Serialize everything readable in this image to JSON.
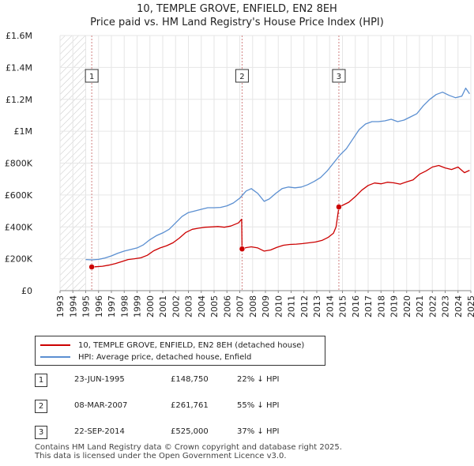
{
  "colors": {
    "property": "#cc0000",
    "hpi": "#5b8fd1",
    "grid": "#e6e6e6",
    "hatch": "#c8c8c8"
  },
  "chart_data": {
    "type": "line",
    "title": "10, TEMPLE GROVE, ENFIELD, EN2 8EH",
    "subtitle": "Price paid vs. HM Land Registry's House Price Index (HPI)",
    "xlabel": "",
    "ylabel": "",
    "xlim": [
      1993,
      2025
    ],
    "ylim": [
      0,
      1600000
    ],
    "x_ticks": [
      1993,
      1994,
      1995,
      1996,
      1997,
      1998,
      1999,
      2000,
      2001,
      2002,
      2003,
      2004,
      2005,
      2006,
      2007,
      2008,
      2009,
      2010,
      2011,
      2012,
      2013,
      2014,
      2015,
      2016,
      2017,
      2018,
      2019,
      2020,
      2021,
      2022,
      2023,
      2024,
      2025
    ],
    "y_ticks": [
      {
        "value": 0,
        "label": "£0"
      },
      {
        "value": 200000,
        "label": "£200K"
      },
      {
        "value": 400000,
        "label": "£400K"
      },
      {
        "value": 600000,
        "label": "£600K"
      },
      {
        "value": 800000,
        "label": "£800K"
      },
      {
        "value": 1000000,
        "label": "£1M"
      },
      {
        "value": 1200000,
        "label": "£1.2M"
      },
      {
        "value": 1400000,
        "label": "£1.4M"
      },
      {
        "value": 1600000,
        "label": "£1.6M"
      }
    ],
    "grid": true,
    "hatched_region_until": 1995.0,
    "series": [
      {
        "name": "10, TEMPLE GROVE, ENFIELD, EN2 8EH (detached house)",
        "color": "#cc0000",
        "points": [
          [
            1995.47,
            148750
          ],
          [
            1995.8,
            150000
          ],
          [
            1996.3,
            153000
          ],
          [
            1996.8,
            160000
          ],
          [
            1997.3,
            170000
          ],
          [
            1997.8,
            182000
          ],
          [
            1998.3,
            195000
          ],
          [
            1998.8,
            200000
          ],
          [
            1999.3,
            206000
          ],
          [
            1999.8,
            222000
          ],
          [
            2000.3,
            250000
          ],
          [
            2000.8,
            268000
          ],
          [
            2001.3,
            282000
          ],
          [
            2001.8,
            300000
          ],
          [
            2002.3,
            330000
          ],
          [
            2002.8,
            365000
          ],
          [
            2003.3,
            385000
          ],
          [
            2003.8,
            392000
          ],
          [
            2004.3,
            398000
          ],
          [
            2004.8,
            400000
          ],
          [
            2005.3,
            402000
          ],
          [
            2005.8,
            398000
          ],
          [
            2006.3,
            405000
          ],
          [
            2006.9,
            425000
          ],
          [
            2007.15,
            448000
          ],
          [
            2007.18,
            261761
          ],
          [
            2007.5,
            270000
          ],
          [
            2007.9,
            275000
          ],
          [
            2008.4,
            268000
          ],
          [
            2008.9,
            248000
          ],
          [
            2009.4,
            255000
          ],
          [
            2009.9,
            272000
          ],
          [
            2010.4,
            285000
          ],
          [
            2010.9,
            290000
          ],
          [
            2011.4,
            292000
          ],
          [
            2011.9,
            295000
          ],
          [
            2012.4,
            300000
          ],
          [
            2012.9,
            305000
          ],
          [
            2013.4,
            315000
          ],
          [
            2013.9,
            335000
          ],
          [
            2014.3,
            360000
          ],
          [
            2014.5,
            400000
          ],
          [
            2014.72,
            525000
          ],
          [
            2015.0,
            535000
          ],
          [
            2015.5,
            555000
          ],
          [
            2016.0,
            590000
          ],
          [
            2016.5,
            630000
          ],
          [
            2017.0,
            660000
          ],
          [
            2017.5,
            675000
          ],
          [
            2018.0,
            670000
          ],
          [
            2018.5,
            680000
          ],
          [
            2019.0,
            676000
          ],
          [
            2019.5,
            668000
          ],
          [
            2020.0,
            682000
          ],
          [
            2020.5,
            695000
          ],
          [
            2021.0,
            730000
          ],
          [
            2021.5,
            750000
          ],
          [
            2022.0,
            775000
          ],
          [
            2022.5,
            785000
          ],
          [
            2023.0,
            770000
          ],
          [
            2023.5,
            760000
          ],
          [
            2024.0,
            775000
          ],
          [
            2024.5,
            740000
          ],
          [
            2024.9,
            755000
          ]
        ]
      },
      {
        "name": "HPI: Average price, detached house, Enfield",
        "color": "#5b8fd1",
        "points": [
          [
            1995.0,
            195000
          ],
          [
            1995.5,
            193000
          ],
          [
            1996.0,
            196000
          ],
          [
            1996.5,
            205000
          ],
          [
            1997.0,
            218000
          ],
          [
            1997.5,
            235000
          ],
          [
            1998.0,
            248000
          ],
          [
            1998.5,
            258000
          ],
          [
            1999.0,
            268000
          ],
          [
            1999.5,
            288000
          ],
          [
            2000.0,
            320000
          ],
          [
            2000.5,
            345000
          ],
          [
            2001.0,
            362000
          ],
          [
            2001.5,
            385000
          ],
          [
            2002.0,
            425000
          ],
          [
            2002.5,
            465000
          ],
          [
            2003.0,
            490000
          ],
          [
            2003.5,
            500000
          ],
          [
            2004.0,
            510000
          ],
          [
            2004.5,
            520000
          ],
          [
            2005.0,
            520000
          ],
          [
            2005.5,
            522000
          ],
          [
            2006.0,
            532000
          ],
          [
            2006.5,
            550000
          ],
          [
            2007.0,
            580000
          ],
          [
            2007.5,
            625000
          ],
          [
            2007.9,
            640000
          ],
          [
            2008.4,
            610000
          ],
          [
            2008.9,
            560000
          ],
          [
            2009.3,
            575000
          ],
          [
            2009.8,
            610000
          ],
          [
            2010.3,
            640000
          ],
          [
            2010.8,
            650000
          ],
          [
            2011.3,
            645000
          ],
          [
            2011.8,
            650000
          ],
          [
            2012.3,
            665000
          ],
          [
            2012.8,
            685000
          ],
          [
            2013.3,
            710000
          ],
          [
            2013.8,
            750000
          ],
          [
            2014.3,
            800000
          ],
          [
            2014.8,
            850000
          ],
          [
            2015.3,
            890000
          ],
          [
            2015.8,
            950000
          ],
          [
            2016.3,
            1010000
          ],
          [
            2016.8,
            1045000
          ],
          [
            2017.3,
            1060000
          ],
          [
            2017.8,
            1060000
          ],
          [
            2018.3,
            1065000
          ],
          [
            2018.8,
            1075000
          ],
          [
            2019.3,
            1060000
          ],
          [
            2019.8,
            1070000
          ],
          [
            2020.3,
            1090000
          ],
          [
            2020.8,
            1110000
          ],
          [
            2021.3,
            1160000
          ],
          [
            2021.8,
            1200000
          ],
          [
            2022.3,
            1230000
          ],
          [
            2022.8,
            1245000
          ],
          [
            2023.3,
            1225000
          ],
          [
            2023.8,
            1210000
          ],
          [
            2024.3,
            1220000
          ],
          [
            2024.6,
            1270000
          ],
          [
            2024.9,
            1235000
          ]
        ]
      }
    ],
    "sale_markers": [
      {
        "label": "1",
        "x": 1995.47,
        "y": 148750
      },
      {
        "label": "2",
        "x": 2007.18,
        "y": 261761
      },
      {
        "label": "3",
        "x": 2014.72,
        "y": 525000
      }
    ]
  },
  "legend": {
    "property_label": "10, TEMPLE GROVE, ENFIELD, EN2 8EH (detached house)",
    "hpi_label": "HPI: Average price, detached house, Enfield"
  },
  "sales": [
    {
      "num": "1",
      "date": "23-JUN-1995",
      "price": "£148,750",
      "pct": "22% ↓ HPI"
    },
    {
      "num": "2",
      "date": "08-MAR-2007",
      "price": "£261,761",
      "pct": "55% ↓ HPI"
    },
    {
      "num": "3",
      "date": "22-SEP-2014",
      "price": "£525,000",
      "pct": "37% ↓ HPI"
    }
  ],
  "footer": {
    "line1": "Contains HM Land Registry data © Crown copyright and database right 2025.",
    "line2": "This data is licensed under the Open Government Licence v3.0."
  }
}
